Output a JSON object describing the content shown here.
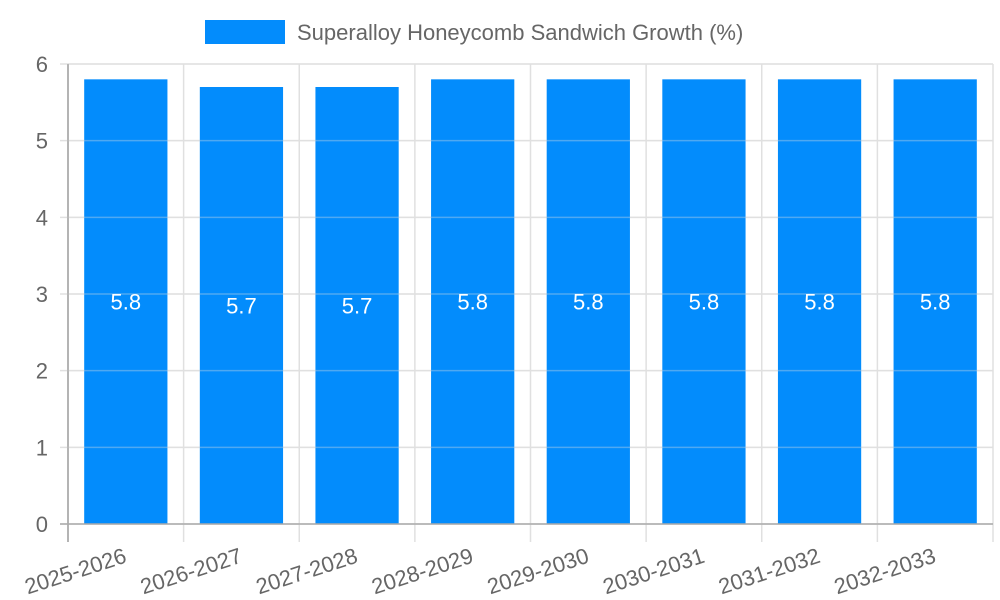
{
  "chart_data": {
    "type": "bar",
    "title": "",
    "legend": [
      {
        "label": "Superalloy Honeycomb Sandwich Growth (%)",
        "color": "#038cfc"
      }
    ],
    "legend_position": "top",
    "categories": [
      "2025-2026",
      "2026-2027",
      "2027-2028",
      "2028-2029",
      "2029-2030",
      "2030-2031",
      "2031-2032",
      "2032-2033"
    ],
    "series": [
      {
        "name": "Superalloy Honeycomb Sandwich Growth (%)",
        "values": [
          5.8,
          5.7,
          5.7,
          5.8,
          5.8,
          5.8,
          5.8,
          5.8
        ],
        "color": "#038cfc"
      }
    ],
    "data_labels": [
      "5.8",
      "5.7",
      "5.7",
      "5.8",
      "5.8",
      "5.8",
      "5.8",
      "5.8"
    ],
    "xlabel": "",
    "ylabel": "",
    "ylim": [
      0,
      6
    ],
    "yticks": [
      "0",
      "1",
      "2",
      "3",
      "4",
      "5",
      "6"
    ],
    "grid": true
  }
}
